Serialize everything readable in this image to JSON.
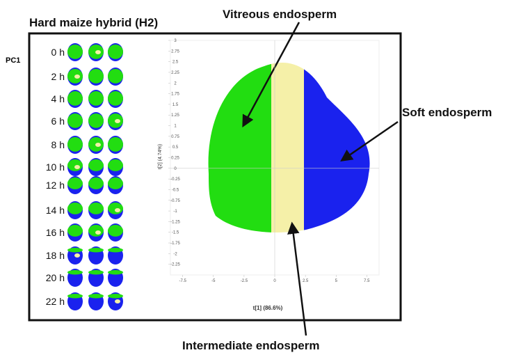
{
  "header": {
    "title": "Hard maize hybrid (H2)",
    "row_label": "PC1"
  },
  "time_labels": [
    "0 h",
    "2 h",
    "4 h",
    "6 h",
    "8 h",
    "10 h",
    "12 h",
    "14 h",
    "16 h",
    "18 h",
    "20 h",
    "22 h"
  ],
  "annotations": {
    "vitreous": "Vitreous endosperm",
    "soft": "Soft endosperm",
    "intermediate": "Intermediate endosperm"
  },
  "chart_data": {
    "type": "scatter",
    "x_label": "t[1] (86.6%)",
    "y_label": "t[2] (4.74%)",
    "xlim": [
      -8.5,
      8.5
    ],
    "ylim": [
      -2.5,
      3
    ],
    "xticks": [
      -7.5,
      -5,
      -2.5,
      0,
      2.5,
      5,
      7.5
    ],
    "yticks": [
      3,
      2.75,
      2.5,
      2.25,
      2,
      1.75,
      1.5,
      1.25,
      1,
      0.75,
      0.5,
      0.25,
      0,
      -0.25,
      -0.5,
      -0.75,
      -1,
      -1.25,
      -1.5,
      -1.75,
      -2,
      -2.25
    ]
  }
}
